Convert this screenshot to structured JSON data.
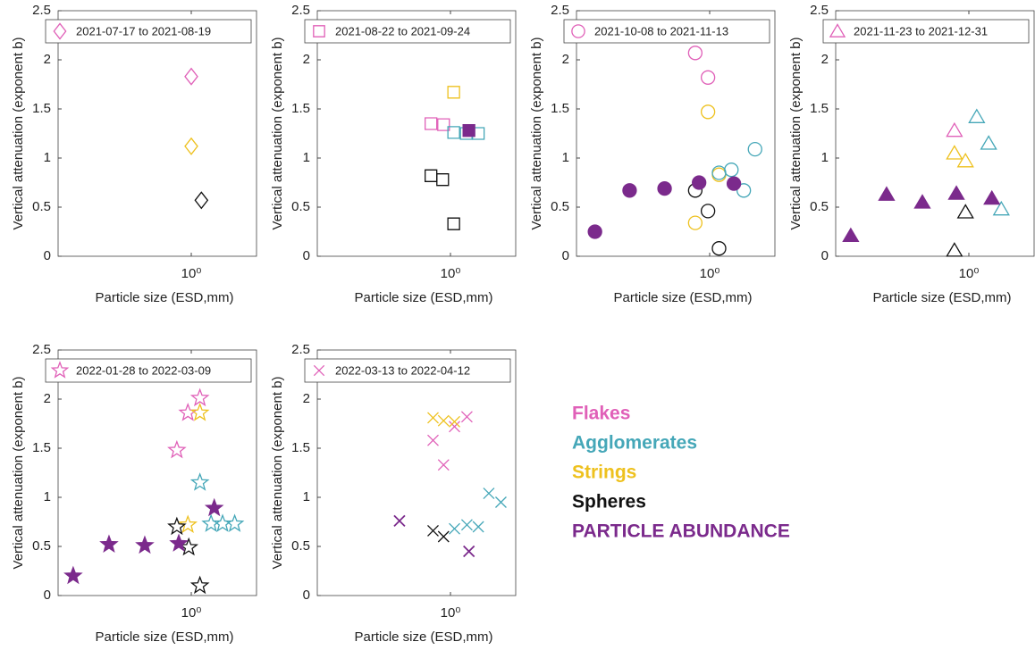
{
  "legend": [
    {
      "name": "Flakes",
      "color": "#e060b8"
    },
    {
      "name": "Agglomerates",
      "color": "#45a7b8"
    },
    {
      "name": "Strings",
      "color": "#eec11e"
    },
    {
      "name": "Spheres",
      "color": "#111111"
    },
    {
      "name": "PARTICLE ABUNDANCE",
      "color": "#7b2a8c"
    }
  ],
  "chart_data": [
    {
      "type": "scatter",
      "legend_label": "2021-07-17 to 2021-08-19",
      "marker": "diamond",
      "xlabel": "Particle size (ESD,mm)",
      "ylabel": "Vertical attenuation (exponent b)",
      "x_log": true,
      "xlim": [
        0.2,
        2.2
      ],
      "xticks": [
        {
          "value": 1,
          "label": "10⁰"
        }
      ],
      "ylim": [
        0,
        2.5
      ],
      "yticks": [
        0,
        0.5,
        1,
        1.5,
        2,
        2.5
      ],
      "series": [
        {
          "color": "#e060b8",
          "filled": false,
          "x": [
            1.0
          ],
          "values": [
            1.83
          ]
        },
        {
          "color": "#eec11e",
          "filled": false,
          "x": [
            1.0
          ],
          "values": [
            1.12
          ]
        },
        {
          "color": "#111111",
          "filled": false,
          "x": [
            1.13
          ],
          "values": [
            0.57
          ]
        }
      ]
    },
    {
      "type": "scatter",
      "legend_label": "2021-08-22 to 2021-09-24",
      "marker": "square",
      "xlabel": "Particle size (ESD,mm)",
      "ylabel": "Vertical attenuation (exponent b)",
      "x_log": true,
      "xlim": [
        0.2,
        2.2
      ],
      "xticks": [
        {
          "value": 1,
          "label": "10⁰"
        }
      ],
      "ylim": [
        0,
        2.5
      ],
      "yticks": [
        0,
        0.5,
        1,
        1.5,
        2,
        2.5
      ],
      "series": [
        {
          "color": "#e060b8",
          "filled": false,
          "x": [
            0.79,
            0.92
          ],
          "values": [
            1.35,
            1.34
          ]
        },
        {
          "color": "#45a7b8",
          "filled": false,
          "x": [
            1.04,
            1.21,
            1.4
          ],
          "values": [
            1.26,
            1.25,
            1.25
          ]
        },
        {
          "color": "#eec11e",
          "filled": false,
          "x": [
            1.04
          ],
          "values": [
            1.67
          ]
        },
        {
          "color": "#111111",
          "filled": false,
          "x": [
            0.79,
            0.91,
            1.04
          ],
          "values": [
            0.82,
            0.78,
            0.33
          ]
        },
        {
          "color": "#7b2a8c",
          "filled": true,
          "x": [
            1.25
          ],
          "values": [
            1.28
          ]
        }
      ]
    },
    {
      "type": "scatter",
      "legend_label": "2021-10-08 to 2021-11-13",
      "marker": "circle",
      "xlabel": "Particle size (ESD,mm)",
      "ylabel": "Vertical attenuation (exponent b)",
      "x_log": true,
      "xlim": [
        0.2,
        2.2
      ],
      "xticks": [
        {
          "value": 1,
          "label": "10⁰"
        }
      ],
      "ylim": [
        0,
        2.5
      ],
      "yticks": [
        0,
        0.5,
        1,
        1.5,
        2,
        2.5
      ],
      "series": [
        {
          "color": "#e060b8",
          "filled": false,
          "x": [
            0.84,
            0.98
          ],
          "values": [
            2.07,
            1.82
          ]
        },
        {
          "color": "#eec11e",
          "filled": false,
          "x": [
            0.84,
            0.98,
            1.12
          ],
          "values": [
            0.34,
            1.47,
            0.83
          ]
        },
        {
          "color": "#45a7b8",
          "filled": false,
          "x": [
            1.12,
            1.3,
            1.51,
            1.73
          ],
          "values": [
            0.85,
            0.88,
            0.67,
            1.09
          ]
        },
        {
          "color": "#111111",
          "filled": false,
          "x": [
            0.84,
            0.98,
            1.12
          ],
          "values": [
            0.67,
            0.46,
            0.08
          ]
        },
        {
          "color": "#7b2a8c",
          "filled": true,
          "x": [
            0.25,
            0.38,
            0.58,
            0.88,
            1.34
          ],
          "values": [
            0.25,
            0.67,
            0.69,
            0.75,
            0.74
          ]
        }
      ]
    },
    {
      "type": "scatter",
      "legend_label": "2021-11-23 to 2021-12-31",
      "marker": "triangle",
      "xlabel": "Particle size (ESD,mm)",
      "ylabel": "Vertical attenuation (exponent b)",
      "x_log": true,
      "xlim": [
        0.2,
        2.2
      ],
      "xticks": [
        {
          "value": 1,
          "label": "10⁰"
        }
      ],
      "ylim": [
        0,
        2.5
      ],
      "yticks": [
        0,
        0.5,
        1,
        1.5,
        2,
        2.5
      ],
      "series": [
        {
          "color": "#e060b8",
          "filled": false,
          "x": [
            0.84
          ],
          "values": [
            1.28
          ]
        },
        {
          "color": "#eec11e",
          "filled": false,
          "x": [
            0.84,
            0.96
          ],
          "values": [
            1.05,
            0.97
          ]
        },
        {
          "color": "#45a7b8",
          "filled": false,
          "x": [
            1.1,
            1.27,
            1.48
          ],
          "values": [
            1.42,
            1.15,
            0.48
          ]
        },
        {
          "color": "#111111",
          "filled": false,
          "x": [
            0.84,
            0.96
          ],
          "values": [
            0.06,
            0.45
          ]
        },
        {
          "color": "#7b2a8c",
          "filled": true,
          "x": [
            0.24,
            0.37,
            0.57,
            0.86,
            1.32
          ],
          "values": [
            0.21,
            0.63,
            0.55,
            0.64,
            0.59
          ]
        }
      ]
    },
    {
      "type": "scatter",
      "legend_label": "2022-01-28 to 2022-03-09",
      "marker": "star",
      "xlabel": "Particle size (ESD,mm)",
      "ylabel": "Vertical attenuation (exponent b)",
      "x_log": true,
      "xlim": [
        0.2,
        2.2
      ],
      "xticks": [
        {
          "value": 1,
          "label": "10⁰"
        }
      ],
      "ylim": [
        0,
        2.5
      ],
      "yticks": [
        0,
        0.5,
        1,
        1.5,
        2,
        2.5
      ],
      "series": [
        {
          "color": "#e060b8",
          "filled": false,
          "x": [
            0.84,
            0.96,
            1.11
          ],
          "values": [
            1.48,
            1.86,
            2.01
          ]
        },
        {
          "color": "#eec11e",
          "filled": false,
          "x": [
            1.11,
            0.96
          ],
          "values": [
            1.86,
            0.72
          ]
        },
        {
          "color": "#45a7b8",
          "filled": false,
          "x": [
            1.11,
            1.27,
            1.46,
            1.69
          ],
          "values": [
            1.15,
            0.73,
            0.73,
            0.73
          ]
        },
        {
          "color": "#111111",
          "filled": false,
          "x": [
            0.84,
            0.97,
            1.11
          ],
          "values": [
            0.7,
            0.49,
            0.1
          ]
        },
        {
          "color": "#7b2a8c",
          "filled": true,
          "x": [
            0.24,
            0.37,
            0.57,
            0.86,
            1.32
          ],
          "values": [
            0.2,
            0.52,
            0.51,
            0.53,
            0.89
          ]
        }
      ]
    },
    {
      "type": "scatter",
      "legend_label": "2022-03-13 to 2022-04-12",
      "marker": "x",
      "xlabel": "Particle size (ESD,mm)",
      "ylabel": "Vertical attenuation (exponent b)",
      "x_log": true,
      "xlim": [
        0.2,
        2.2
      ],
      "xticks": [
        {
          "value": 1,
          "label": "10⁰"
        }
      ],
      "ylim": [
        0,
        2.5
      ],
      "yticks": [
        0,
        0.5,
        1,
        1.5,
        2,
        2.5
      ],
      "series": [
        {
          "color": "#e060b8",
          "filled": false,
          "x": [
            0.81,
            0.92,
            1.05,
            1.22
          ],
          "values": [
            1.58,
            1.33,
            1.72,
            1.82
          ]
        },
        {
          "color": "#eec11e",
          "filled": false,
          "x": [
            0.81,
            0.92,
            1.05
          ],
          "values": [
            1.81,
            1.78,
            1.77
          ]
        },
        {
          "color": "#45a7b8",
          "filled": false,
          "x": [
            1.05,
            1.22,
            1.4,
            1.59,
            1.84
          ],
          "values": [
            0.68,
            0.72,
            0.7,
            1.04,
            0.95
          ]
        },
        {
          "color": "#111111",
          "filled": false,
          "x": [
            0.81,
            0.92
          ],
          "values": [
            0.66,
            0.6
          ]
        },
        {
          "color": "#7b2a8c",
          "filled": true,
          "x": [
            0.54,
            1.25
          ],
          "values": [
            0.76,
            0.45
          ]
        }
      ]
    }
  ]
}
